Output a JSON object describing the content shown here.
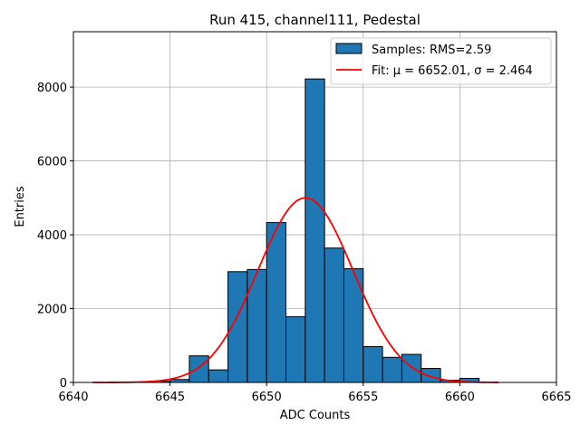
{
  "chart_data": {
    "type": "bar",
    "title": "Run 415, channel111, Pedestal",
    "xlabel": "ADC Counts",
    "ylabel": "Entries",
    "xlim": [
      6640,
      6665
    ],
    "ylim": [
      0,
      9500
    ],
    "x_ticks": [
      6640,
      6645,
      6650,
      6655,
      6660,
      6665
    ],
    "y_ticks": [
      0,
      2000,
      4000,
      6000,
      8000
    ],
    "grid": true,
    "legend_position": "top-right",
    "bin_width": 1,
    "bins": [
      {
        "x": 6644,
        "value": 30
      },
      {
        "x": 6645,
        "value": 80
      },
      {
        "x": 6646,
        "value": 720
      },
      {
        "x": 6647,
        "value": 340
      },
      {
        "x": 6648,
        "value": 3000
      },
      {
        "x": 6649,
        "value": 3060
      },
      {
        "x": 6650,
        "value": 4330
      },
      {
        "x": 6651,
        "value": 1780
      },
      {
        "x": 6652,
        "value": 8220
      },
      {
        "x": 6653,
        "value": 3640
      },
      {
        "x": 6654,
        "value": 3080
      },
      {
        "x": 6655,
        "value": 970
      },
      {
        "x": 6656,
        "value": 680
      },
      {
        "x": 6657,
        "value": 760
      },
      {
        "x": 6658,
        "value": 380
      },
      {
        "x": 6659,
        "value": 60
      },
      {
        "x": 6660,
        "value": 110
      }
    ],
    "series": [
      {
        "name": "Samples: RMS=2.59",
        "type": "bar",
        "color": "#1f77b4"
      },
      {
        "name": "Fit: μ = 6652.01, σ = 2.464",
        "type": "line",
        "color": "#ff0000",
        "mu": 6652.01,
        "sigma": 2.464,
        "amplitude": 5000,
        "x_range": [
          6641,
          6662
        ]
      }
    ]
  }
}
